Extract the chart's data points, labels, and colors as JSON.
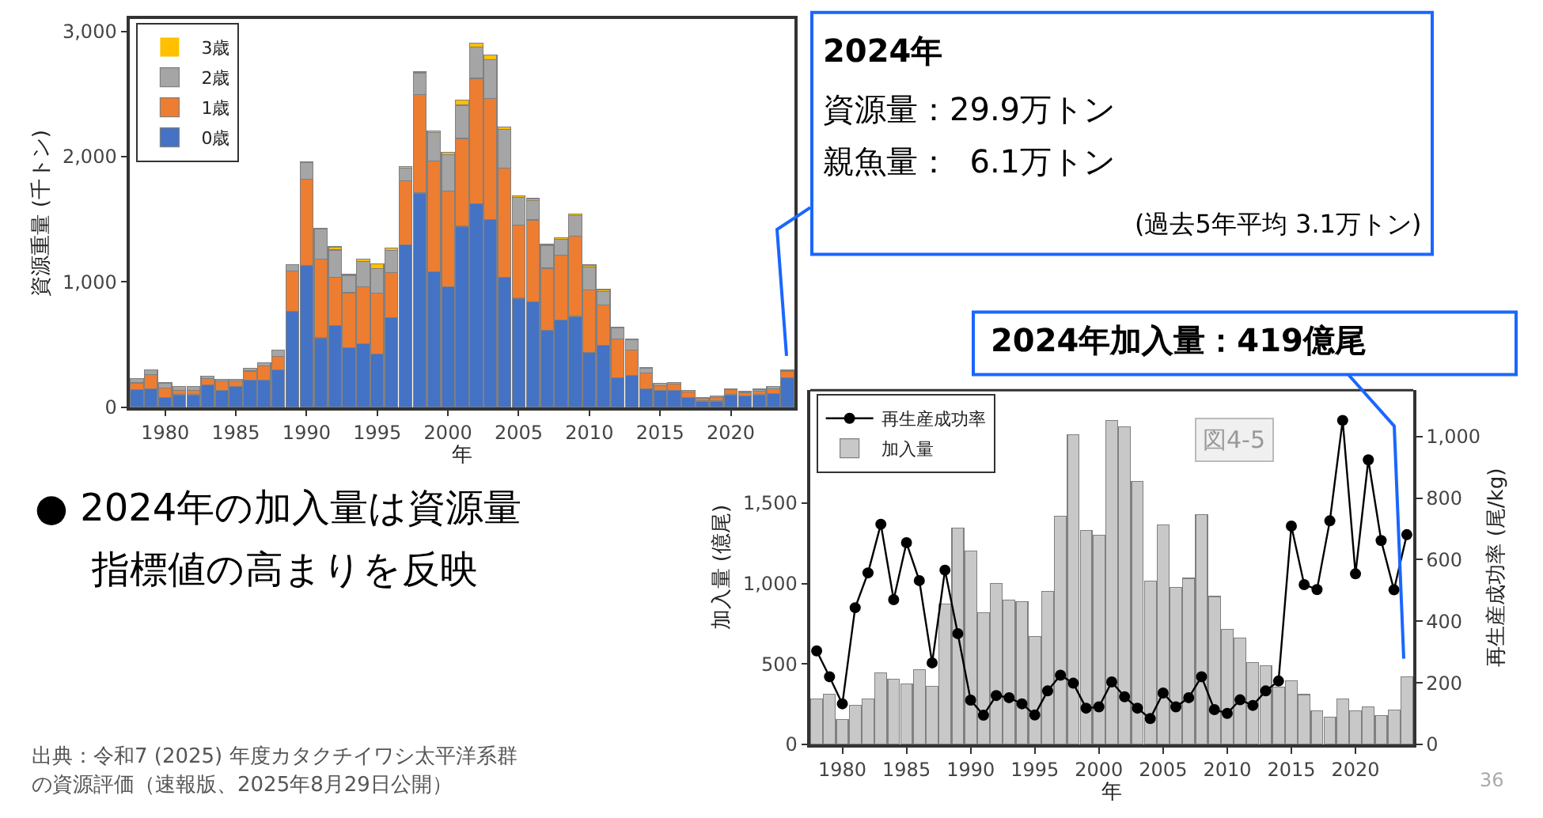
{
  "chart_data": [
    {
      "type": "bar",
      "stacked": true,
      "x": [
        1978,
        1979,
        1980,
        1981,
        1982,
        1983,
        1984,
        1985,
        1986,
        1987,
        1988,
        1989,
        1990,
        1991,
        1992,
        1993,
        1994,
        1995,
        1996,
        1997,
        1998,
        1999,
        2000,
        2001,
        2002,
        2003,
        2004,
        2005,
        2006,
        2007,
        2008,
        2009,
        2010,
        2011,
        2012,
        2013,
        2014,
        2015,
        2016,
        2017,
        2018,
        2019,
        2020,
        2021,
        2022,
        2023,
        2024
      ],
      "series": [
        {
          "name": "0歳",
          "color": "#4472c4",
          "values": [
            140,
            150,
            80,
            100,
            100,
            180,
            135,
            165,
            215,
            215,
            300,
            765,
            1130,
            555,
            655,
            475,
            510,
            425,
            715,
            1295,
            1710,
            1080,
            960,
            1445,
            1625,
            1500,
            1040,
            870,
            840,
            615,
            695,
            725,
            440,
            495,
            235,
            255,
            150,
            135,
            135,
            80,
            50,
            50,
            100,
            90,
            100,
            110,
            235
          ]
        },
        {
          "name": "1歳",
          "color": "#ed7d31",
          "values": [
            55,
            110,
            75,
            35,
            35,
            50,
            75,
            45,
            75,
            115,
            105,
            325,
            690,
            630,
            385,
            440,
            450,
            485,
            360,
            510,
            785,
            885,
            765,
            700,
            1000,
            965,
            870,
            585,
            655,
            495,
            520,
            640,
            495,
            320,
            310,
            200,
            125,
            40,
            50,
            45,
            20,
            30,
            40,
            30,
            30,
            40,
            55
          ]
        },
        {
          "name": "2歳",
          "color": "#a5a5a5",
          "values": [
            35,
            40,
            40,
            30,
            30,
            20,
            15,
            15,
            20,
            25,
            50,
            50,
            135,
            240,
            215,
            135,
            205,
            195,
            175,
            105,
            170,
            225,
            290,
            265,
            250,
            310,
            310,
            220,
            155,
            180,
            125,
            165,
            185,
            110,
            90,
            85,
            40,
            15,
            15,
            10,
            10,
            10,
            10,
            10,
            15,
            15,
            9
          ]
        },
        {
          "name": "3歳",
          "color": "#ffc000",
          "values": [
            0,
            0,
            0,
            0,
            0,
            0,
            0,
            0,
            0,
            0,
            0,
            0,
            5,
            5,
            25,
            10,
            20,
            40,
            20,
            10,
            10,
            15,
            20,
            40,
            30,
            35,
            15,
            15,
            15,
            10,
            15,
            10,
            15,
            15,
            5,
            5,
            5,
            0,
            0,
            0,
            0,
            0,
            0,
            0,
            0,
            0,
            0
          ]
        }
      ],
      "xlim": [
        1977.5,
        2024.5
      ],
      "ylim": [
        0,
        3100
      ],
      "xticks": [
        1980,
        1985,
        1990,
        1995,
        2000,
        2005,
        2010,
        2015,
        2020
      ],
      "yticks": [
        0,
        {
          "value": 1000,
          "label": "1,000"
        },
        {
          "value": 2000,
          "label": "2,000"
        },
        {
          "value": 3000,
          "label": "3,000"
        }
      ],
      "xlabel": "年",
      "ylabel": "資源重量 (千トン)",
      "legend": "top left",
      "annotations": [
        "2024年",
        "資源量：29.9万トン",
        "親魚量：  6.1万トン",
        "(過去5年平均 3.1万トン)",
        "● 2024年の加入量は資源量",
        "指標値の高まりを反映",
        "出典：令和7 (2025) 年度カタクチイワシ太平洋系群",
        "の資源評価（速報版、2025年8月29日公開）"
      ]
    },
    {
      "type": "bar",
      "x": [
        1978,
        1979,
        1980,
        1981,
        1982,
        1983,
        1984,
        1985,
        1986,
        1987,
        1988,
        1989,
        1990,
        1991,
        1992,
        1993,
        1994,
        1995,
        1996,
        1997,
        1998,
        1999,
        2000,
        2001,
        2002,
        2003,
        2004,
        2005,
        2006,
        2007,
        2008,
        2009,
        2010,
        2011,
        2012,
        2013,
        2014,
        2015,
        2016,
        2017,
        2018,
        2019,
        2020,
        2021,
        2022,
        2023,
        2024
      ],
      "series": [
        {
          "name": "再生産成功率",
          "type": "line",
          "axis": "y2",
          "color": "#000000",
          "values": [
            304,
            220,
            132,
            444,
            557,
            715,
            470,
            655,
            532,
            265,
            566,
            360,
            144,
            95,
            159,
            152,
            132,
            96,
            174,
            225,
            199,
            118,
            122,
            203,
            155,
            118,
            84,
            167,
            122,
            152,
            220,
            113,
            101,
            145,
            127,
            174,
            206,
            709,
            519,
            503,
            726,
            1052,
            554,
            924,
            662,
            502,
            681
          ]
        },
        {
          "name": "加入量",
          "type": "bar",
          "color": "#c8c8c8",
          "values": [
            284,
            313,
            155,
            245,
            284,
            445,
            406,
            377,
            465,
            361,
            871,
            1342,
            1200,
            819,
            1000,
            897,
            887,
            671,
            952,
            1419,
            1923,
            1329,
            1300,
            2013,
            1971,
            1632,
            1016,
            1365,
            974,
            1032,
            1426,
            919,
            716,
            661,
            510,
            490,
            355,
            394,
            310,
            210,
            168,
            284,
            210,
            232,
            181,
            213,
            419
          ]
        }
      ],
      "xlim": [
        1977.5,
        2024.5
      ],
      "ylim": [
        0,
        2200
      ],
      "y2lim": [
        0,
        1150
      ],
      "xticks": [
        1980,
        1985,
        1990,
        1995,
        2000,
        2005,
        2010,
        2015,
        2020
      ],
      "yticks": [
        0,
        500,
        {
          "value": 1000,
          "label": "1,000"
        },
        {
          "value": 1500,
          "label": "1,500"
        }
      ],
      "y2ticks": [
        0,
        200,
        400,
        600,
        800,
        {
          "value": 1000,
          "label": "1,000"
        }
      ],
      "xlabel": "年",
      "ylabel": "加入量 (億尾)",
      "y2label": "再生産成功率 (尾/kg)",
      "legend": "top left",
      "marker": "circle",
      "line_style": "solid",
      "annotations": [
        "2024年加入量：419億尾",
        "図4-5",
        "36"
      ]
    }
  ]
}
